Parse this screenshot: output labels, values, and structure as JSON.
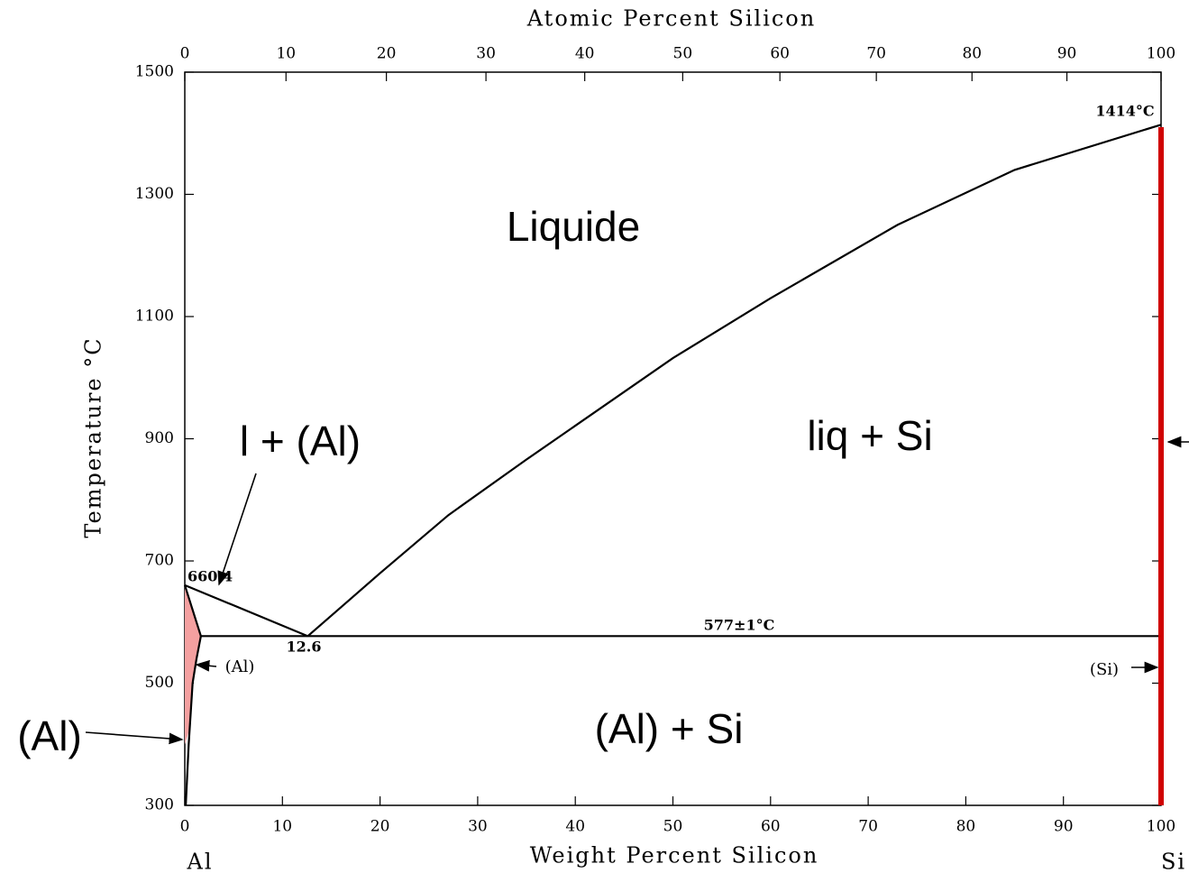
{
  "chart_data": {
    "type": "phase-diagram",
    "x_label": "Weight Percent Silicon",
    "x2_label": "Atomic Percent Silicon",
    "y_label": "Temperature °C",
    "components": [
      "Al",
      "Si"
    ],
    "xlim": [
      0,
      100
    ],
    "xticks": [
      0,
      10,
      20,
      30,
      40,
      50,
      60,
      70,
      80,
      90,
      100
    ],
    "x2lim": [
      0,
      100
    ],
    "x2ticks": [
      0,
      10,
      20,
      30,
      40,
      50,
      60,
      70,
      80,
      90,
      100
    ],
    "ylim": [
      300,
      1500
    ],
    "yticks": [
      300,
      500,
      700,
      900,
      1100,
      1300,
      1500
    ],
    "regions": [
      {
        "color": "#f4a0a0",
        "x": [
          0,
          1.65,
          1.2,
          0.8,
          0.4,
          0
        ],
        "y": [
          660.4,
          577,
          540,
          500,
          420,
          400
        ]
      }
    ],
    "series": [
      {
        "color": "#000000",
        "x": [
          12.6,
          20,
          27,
          35,
          50,
          60,
          73,
          85,
          100
        ],
        "y": [
          577,
          680,
          775,
          866,
          1032,
          1130,
          1250,
          1340,
          1414
        ]
      },
      {
        "color": "#000000",
        "x": [
          0,
          12.6
        ],
        "y": [
          660.4,
          577
        ]
      },
      {
        "color": "#000000",
        "x": [
          0,
          1.65
        ],
        "y": [
          660.4,
          577
        ]
      },
      {
        "color": "#000000",
        "x": [
          1.65,
          1.2,
          0.8,
          0.4,
          0.1
        ],
        "y": [
          577,
          540,
          500,
          400,
          300
        ]
      },
      {
        "color": "#000000",
        "x": [
          1.65,
          100
        ],
        "y": [
          577,
          577
        ]
      },
      {
        "color": "#d00000",
        "x": [
          100,
          100
        ],
        "y": [
          1410,
          300
        ]
      }
    ],
    "annotations": [
      "Liquide",
      "liq + Si",
      "l + (Al)",
      "(Al) + Si",
      "(Al)",
      "(Al)",
      "(Si)",
      660.4,
      12.6,
      "577±1°C",
      "1414°C"
    ]
  }
}
